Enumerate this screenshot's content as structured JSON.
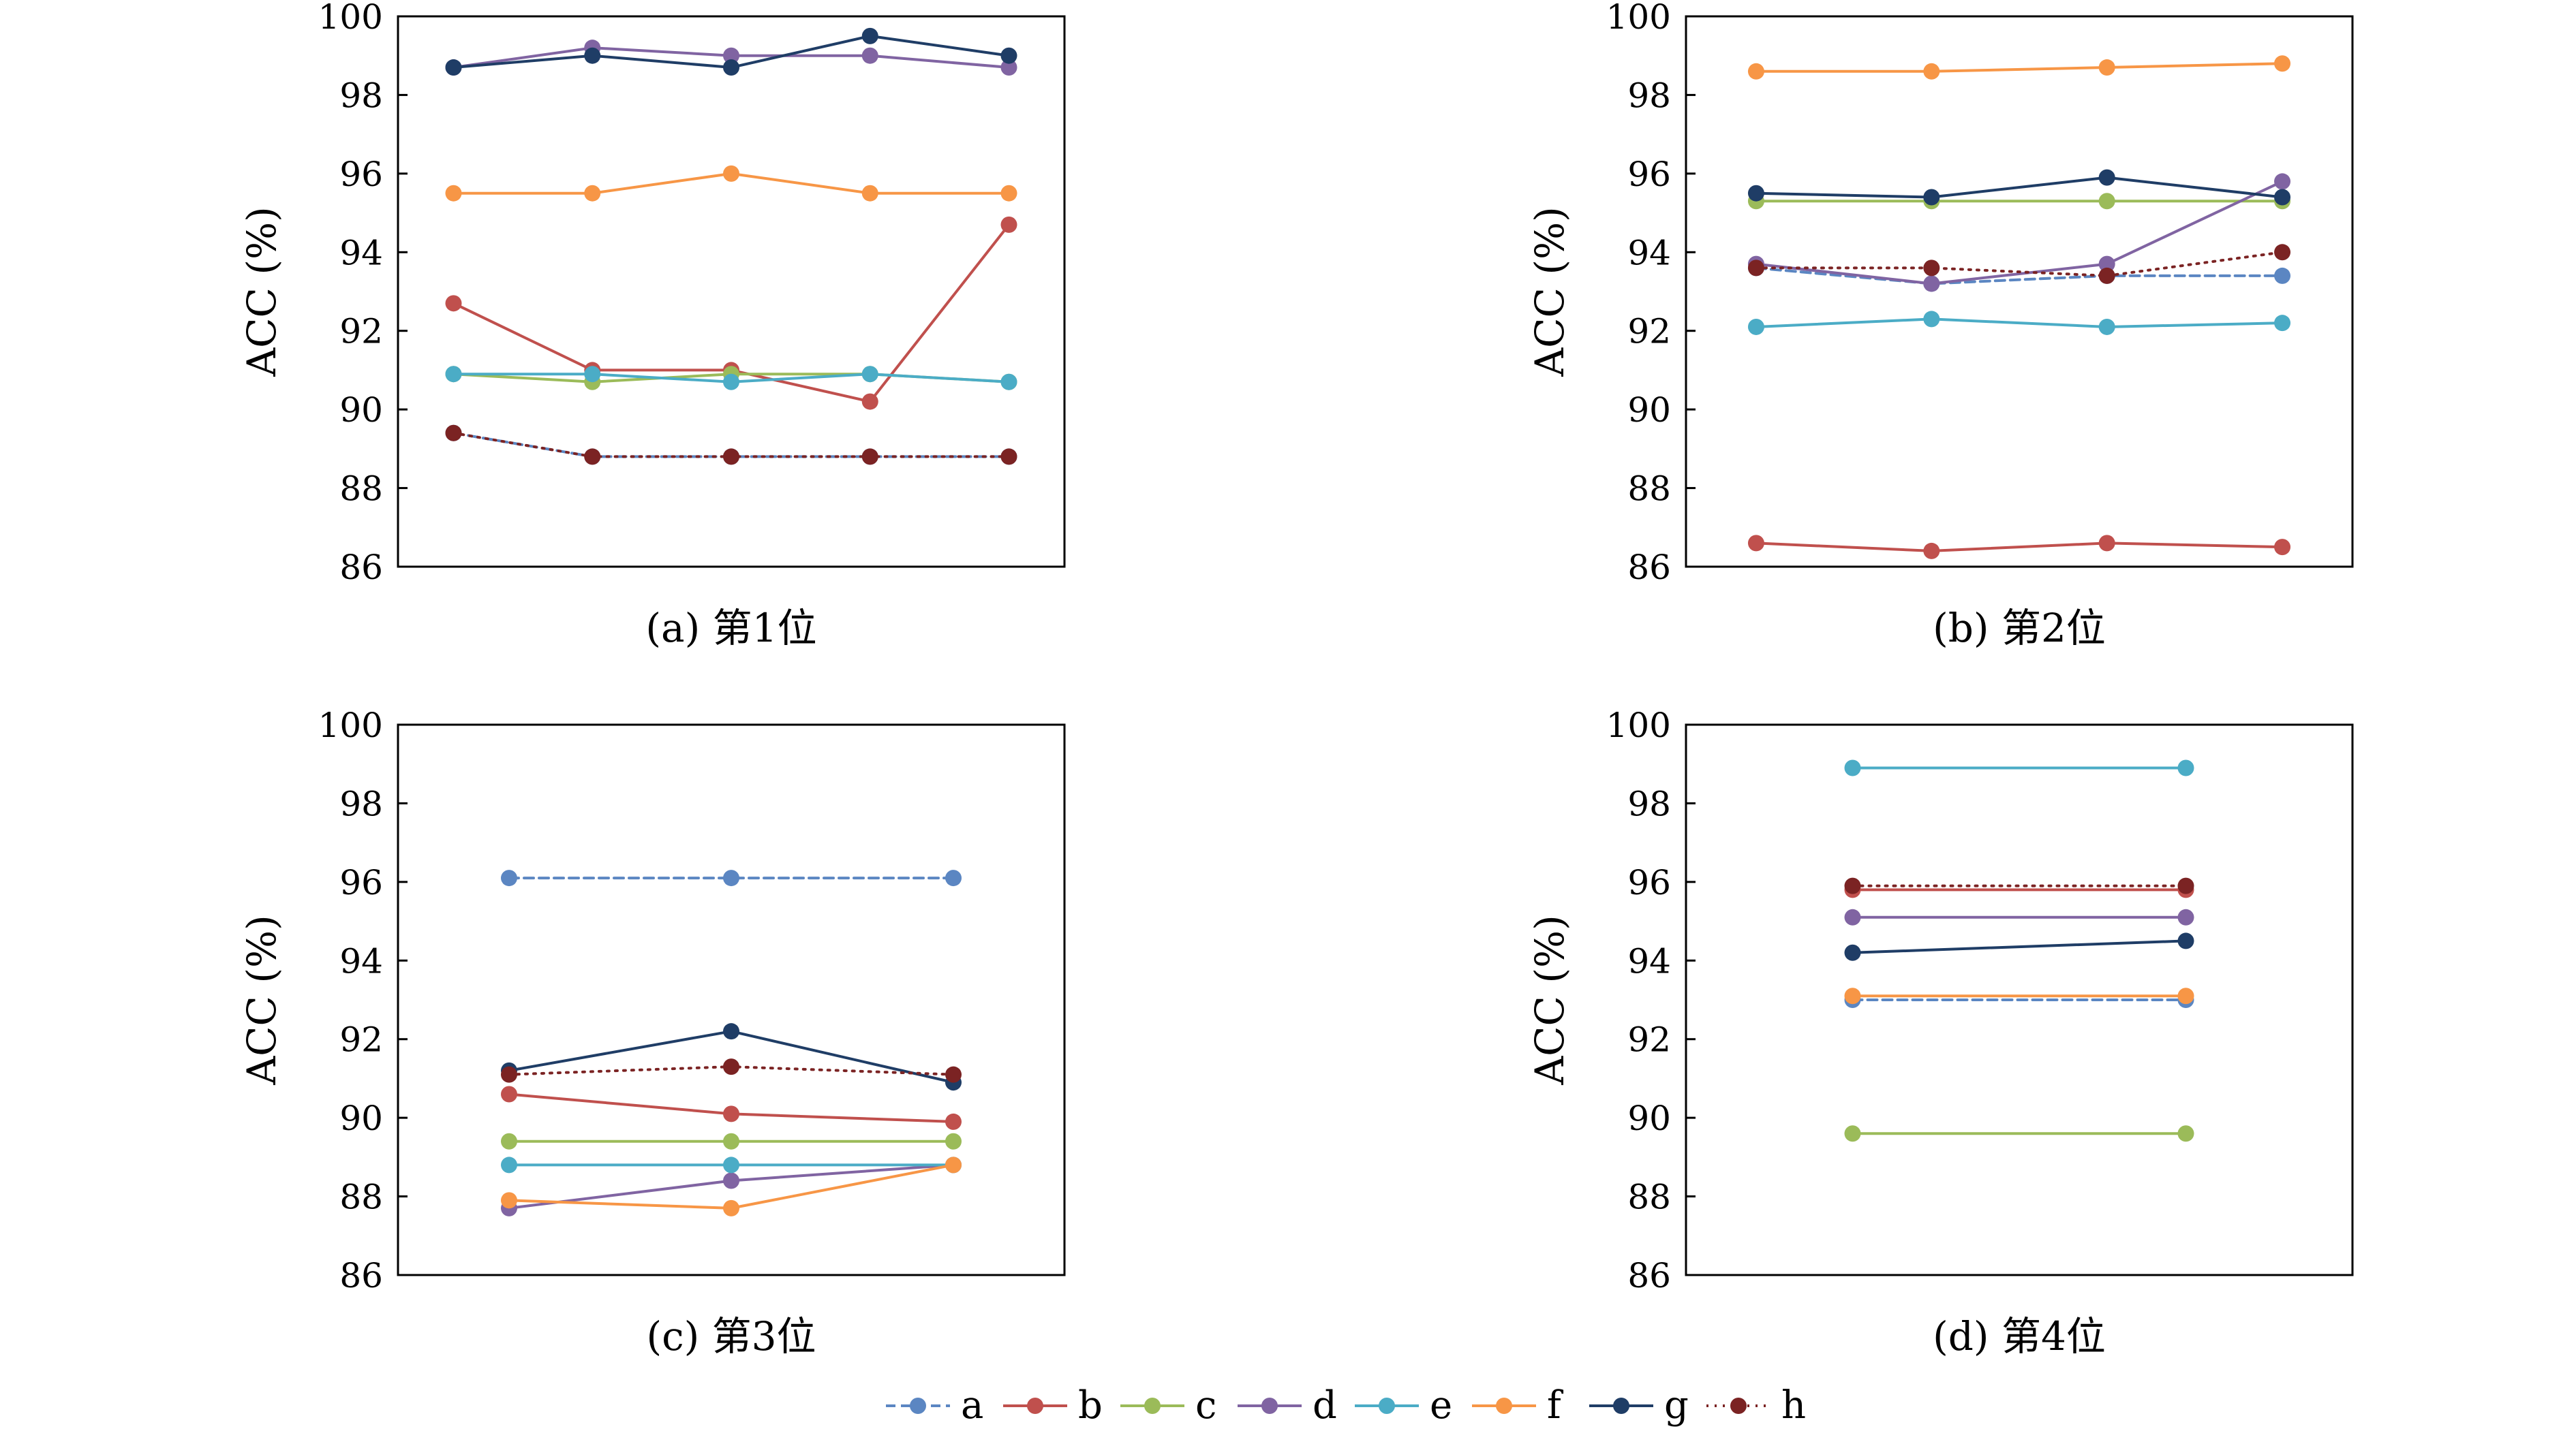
{
  "colors": {
    "a": "#5b86c2",
    "b": "#c0504d",
    "c": "#9bbb59",
    "d": "#8064a2",
    "e": "#4bacc6",
    "f": "#f79646",
    "g": "#1f3d66",
    "h": "#7b2323"
  },
  "chart_data": [
    {
      "type": "line",
      "caption": "(a) 第1位",
      "ylabel": "ACC (%)",
      "ylim": [
        86,
        100
      ],
      "yticks": [
        "86",
        "88",
        "90",
        "92",
        "94",
        "96",
        "98",
        "100"
      ],
      "x": [
        1,
        2,
        3,
        4,
        5
      ],
      "xlim": [
        0.6,
        5.4
      ],
      "series": [
        {
          "name": "a",
          "values": [
            89.4,
            88.8,
            88.8,
            88.8,
            88.8
          ],
          "dash": "dashed"
        },
        {
          "name": "b",
          "values": [
            92.7,
            91.0,
            91.0,
            90.2,
            94.7
          ],
          "dash": "solid"
        },
        {
          "name": "c",
          "values": [
            90.9,
            90.7,
            90.9,
            90.9,
            90.7
          ],
          "dash": "solid"
        },
        {
          "name": "d",
          "values": [
            98.7,
            99.2,
            99.0,
            99.0,
            98.7
          ],
          "dash": "solid"
        },
        {
          "name": "e",
          "values": [
            90.9,
            90.9,
            90.7,
            90.9,
            90.7
          ],
          "dash": "solid"
        },
        {
          "name": "f",
          "values": [
            95.5,
            95.5,
            96.0,
            95.5,
            95.5
          ],
          "dash": "solid"
        },
        {
          "name": "g",
          "values": [
            98.7,
            99.0,
            98.7,
            99.5,
            99.0
          ],
          "dash": "solid"
        },
        {
          "name": "h",
          "values": [
            89.4,
            88.8,
            88.8,
            88.8,
            88.8
          ],
          "dash": "dotted"
        }
      ]
    },
    {
      "type": "line",
      "caption": "(b) 第2位",
      "ylabel": "ACC (%)",
      "ylim": [
        86,
        100
      ],
      "yticks": [
        "86",
        "88",
        "90",
        "92",
        "94",
        "96",
        "98",
        "100"
      ],
      "x": [
        1,
        2,
        3,
        4
      ],
      "xlim": [
        0.6,
        4.4
      ],
      "series": [
        {
          "name": "a",
          "values": [
            93.6,
            93.2,
            93.4,
            93.4
          ],
          "dash": "dashed"
        },
        {
          "name": "b",
          "values": [
            86.6,
            86.4,
            86.6,
            86.5
          ],
          "dash": "solid"
        },
        {
          "name": "c",
          "values": [
            95.3,
            95.3,
            95.3,
            95.3
          ],
          "dash": "solid"
        },
        {
          "name": "d",
          "values": [
            93.7,
            93.2,
            93.7,
            95.8
          ],
          "dash": "solid"
        },
        {
          "name": "e",
          "values": [
            92.1,
            92.3,
            92.1,
            92.2
          ],
          "dash": "solid"
        },
        {
          "name": "f",
          "values": [
            98.6,
            98.6,
            98.7,
            98.8
          ],
          "dash": "solid"
        },
        {
          "name": "g",
          "values": [
            95.5,
            95.4,
            95.9,
            95.4
          ],
          "dash": "solid"
        },
        {
          "name": "h",
          "values": [
            93.6,
            93.6,
            93.4,
            94.0
          ],
          "dash": "dotted"
        }
      ]
    },
    {
      "type": "line",
      "caption": "(c) 第3位",
      "ylabel": "ACC (%)",
      "ylim": [
        86,
        100
      ],
      "yticks": [
        "86",
        "88",
        "90",
        "92",
        "94",
        "96",
        "98",
        "100"
      ],
      "x": [
        1,
        2,
        3
      ],
      "xlim": [
        0.5,
        3.5
      ],
      "series": [
        {
          "name": "a",
          "values": [
            96.1,
            96.1,
            96.1
          ],
          "dash": "dashed"
        },
        {
          "name": "b",
          "values": [
            90.6,
            90.1,
            89.9
          ],
          "dash": "solid"
        },
        {
          "name": "c",
          "values": [
            89.4,
            89.4,
            89.4
          ],
          "dash": "solid"
        },
        {
          "name": "d",
          "values": [
            87.7,
            88.4,
            88.8
          ],
          "dash": "solid"
        },
        {
          "name": "e",
          "values": [
            88.8,
            88.8,
            88.8
          ],
          "dash": "solid"
        },
        {
          "name": "f",
          "values": [
            87.9,
            87.7,
            88.8
          ],
          "dash": "solid"
        },
        {
          "name": "g",
          "values": [
            91.2,
            92.2,
            90.9
          ],
          "dash": "solid"
        },
        {
          "name": "h",
          "values": [
            91.1,
            91.3,
            91.1
          ],
          "dash": "dotted"
        }
      ]
    },
    {
      "type": "line",
      "caption": "(d) 第4位",
      "ylabel": "ACC (%)",
      "ylim": [
        86,
        100
      ],
      "yticks": [
        "86",
        "88",
        "90",
        "92",
        "94",
        "96",
        "98",
        "100"
      ],
      "x": [
        1,
        2
      ],
      "xlim": [
        0.5,
        2.5
      ],
      "series": [
        {
          "name": "a",
          "values": [
            93.0,
            93.0
          ],
          "dash": "dashed"
        },
        {
          "name": "b",
          "values": [
            95.8,
            95.8
          ],
          "dash": "solid"
        },
        {
          "name": "c",
          "values": [
            89.6,
            89.6
          ],
          "dash": "solid"
        },
        {
          "name": "d",
          "values": [
            95.1,
            95.1
          ],
          "dash": "solid"
        },
        {
          "name": "e",
          "values": [
            98.9,
            98.9
          ],
          "dash": "solid"
        },
        {
          "name": "f",
          "values": [
            93.1,
            93.1
          ],
          "dash": "solid"
        },
        {
          "name": "g",
          "values": [
            94.2,
            94.5
          ],
          "dash": "solid"
        },
        {
          "name": "h",
          "values": [
            95.9,
            95.9
          ],
          "dash": "dotted"
        }
      ]
    }
  ],
  "legend": {
    "placement": "bottom-center",
    "items": [
      "a",
      "b",
      "c",
      "d",
      "e",
      "f",
      "g",
      "h"
    ]
  }
}
